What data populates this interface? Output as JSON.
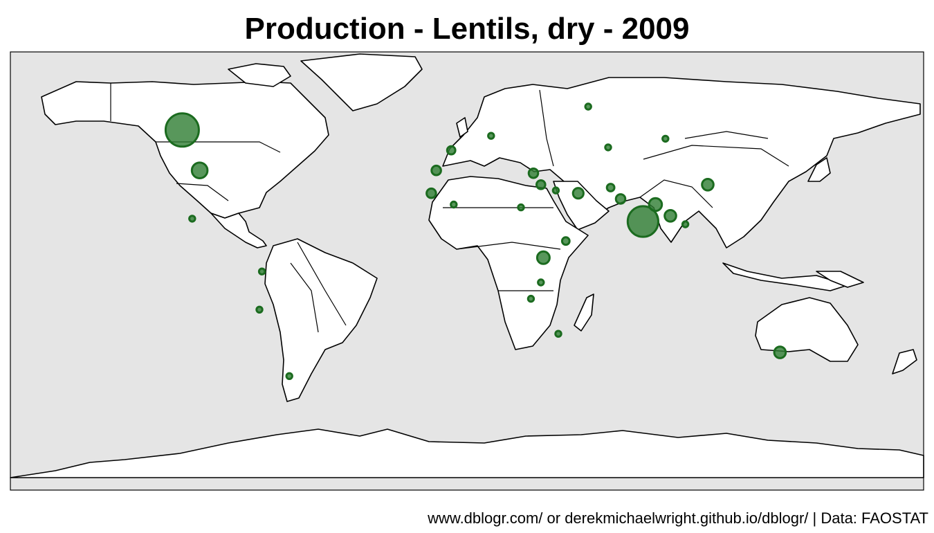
{
  "title": "Production - Lentils, dry - 2009",
  "caption": "www.dblogr.com/ or derekmichaelwright.github.io/dblogr/ | Data: FAOSTAT",
  "colors": {
    "ocean": "#e5e5e5",
    "land": "#ffffff",
    "bubble": "#2e7d32"
  },
  "chart_data": {
    "type": "bubble-map",
    "metric": "Production - Lentils, dry",
    "year": "2009",
    "points": [
      {
        "lon": -106,
        "lat": 54,
        "size": 1.0
      },
      {
        "lon": -99,
        "lat": 40,
        "size": 0.22
      },
      {
        "lon": -102,
        "lat": 23,
        "size": 0.03
      },
      {
        "lon": -74,
        "lat": 4,
        "size": 0.03
      },
      {
        "lon": -75,
        "lat": -10,
        "size": 0.03
      },
      {
        "lon": -63,
        "lat": -35,
        "size": 0.03
      },
      {
        "lon": -4,
        "lat": 40,
        "size": 0.08
      },
      {
        "lon": 2,
        "lat": 47,
        "size": 0.06
      },
      {
        "lon": -6,
        "lat": 32,
        "size": 0.08
      },
      {
        "lon": 3,
        "lat": 28,
        "size": 0.03
      },
      {
        "lon": 30,
        "lat": 27,
        "size": 0.03
      },
      {
        "lon": 18,
        "lat": 52,
        "size": 0.03
      },
      {
        "lon": 38,
        "lat": 35,
        "size": 0.07
      },
      {
        "lon": 35,
        "lat": 39,
        "size": 0.08
      },
      {
        "lon": 44,
        "lat": 33,
        "size": 0.03
      },
      {
        "lon": 53,
        "lat": 32,
        "size": 0.1
      },
      {
        "lon": 66,
        "lat": 34,
        "size": 0.05
      },
      {
        "lon": 70,
        "lat": 30,
        "size": 0.08
      },
      {
        "lon": 79,
        "lat": 22,
        "size": 0.85
      },
      {
        "lon": 84,
        "lat": 28,
        "size": 0.15
      },
      {
        "lon": 90,
        "lat": 24,
        "size": 0.12
      },
      {
        "lon": 96,
        "lat": 21,
        "size": 0.03
      },
      {
        "lon": 105,
        "lat": 35,
        "size": 0.12
      },
      {
        "lon": 39,
        "lat": 9,
        "size": 0.14
      },
      {
        "lon": 48,
        "lat": 15,
        "size": 0.05
      },
      {
        "lon": 38,
        "lat": 0,
        "size": 0.03
      },
      {
        "lon": 34,
        "lat": -6,
        "size": 0.03
      },
      {
        "lon": 45,
        "lat": -19,
        "size": 0.03
      },
      {
        "lon": 134,
        "lat": -26,
        "size": 0.12
      },
      {
        "lon": 65,
        "lat": 48,
        "size": 0.03
      },
      {
        "lon": 57,
        "lat": 62,
        "size": 0.03
      },
      {
        "lon": 88,
        "lat": 51,
        "size": 0.03
      }
    ]
  }
}
